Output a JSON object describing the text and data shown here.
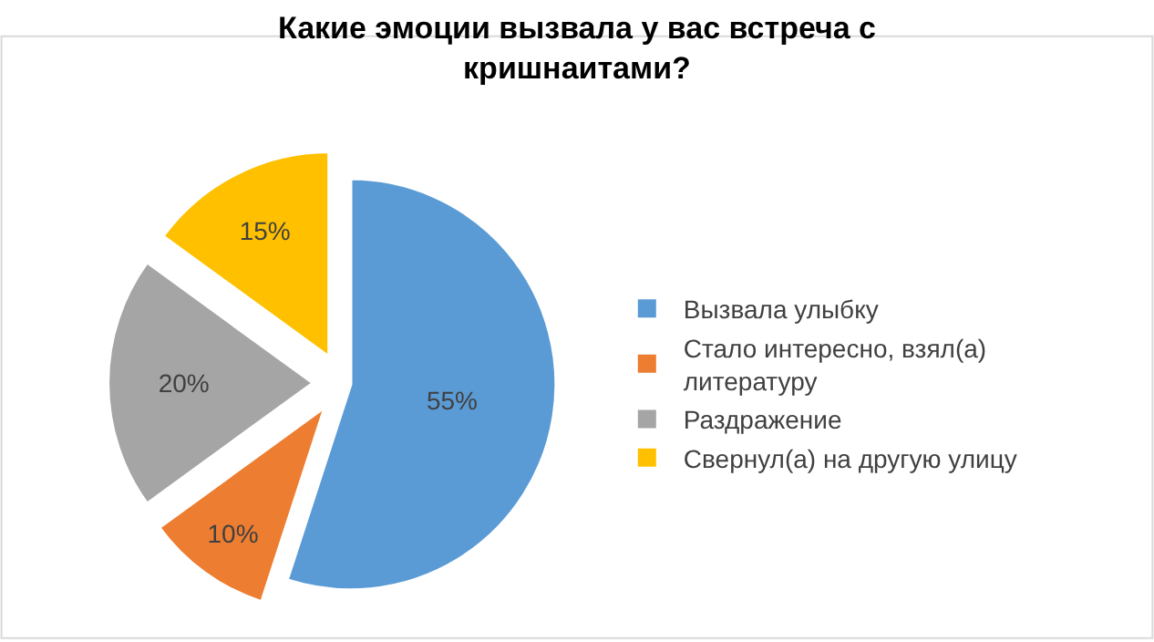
{
  "chart_data": {
    "type": "pie",
    "title": "Какие эмоции вызвала у вас встреча с кришнаитами?",
    "categories": [
      "Вызвала улыбку",
      "Стало интересно, взял(а) литературу",
      "Раздражение",
      "Свернул(а) на другую улицу"
    ],
    "values": [
      55,
      10,
      20,
      15
    ],
    "colors": [
      "#5b9bd5",
      "#ed7d31",
      "#a5a5a5",
      "#ffc000"
    ],
    "value_labels": [
      "55%",
      "10%",
      "20%",
      "15%"
    ],
    "legend": "right"
  }
}
